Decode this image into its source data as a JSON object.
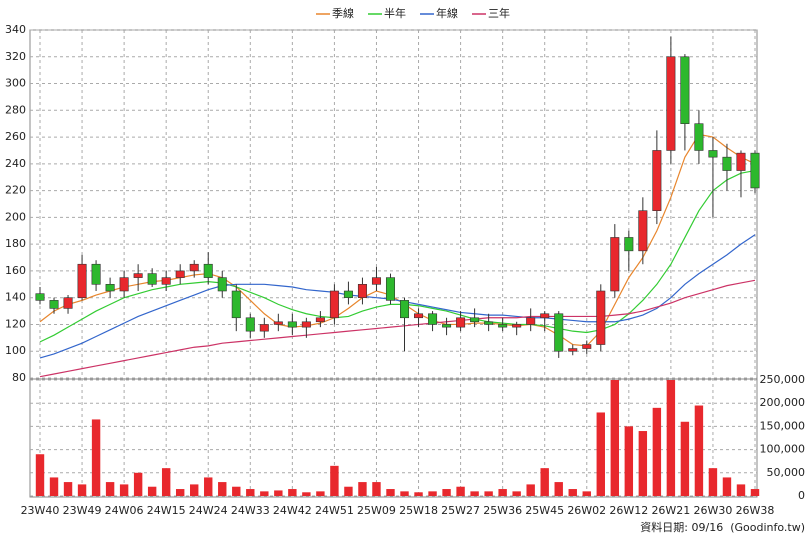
{
  "chart_data": {
    "type": "candlestick",
    "categories": [
      "23W40",
      null,
      null,
      "23W49",
      null,
      null,
      "24W06",
      null,
      null,
      "24W15",
      null,
      null,
      "24W24",
      null,
      null,
      "24W33",
      null,
      null,
      "24W42",
      null,
      null,
      "24W51",
      null,
      null,
      "25W09",
      null,
      null,
      "25W18",
      null,
      null,
      "25W27",
      null,
      null,
      "25W36",
      null,
      null,
      "25W45",
      null,
      null,
      "26W02",
      null,
      null,
      "26W12",
      null,
      null,
      "26W21",
      null,
      null,
      "26W30",
      null,
      null,
      "26W38"
    ],
    "open": [
      143,
      138,
      132,
      140,
      165,
      150,
      145,
      155,
      158,
      150,
      155,
      160,
      165,
      155,
      145,
      125,
      115,
      120,
      122,
      118,
      122,
      125,
      145,
      140,
      150,
      155,
      138,
      125,
      128,
      120,
      118,
      125,
      122,
      120,
      118,
      120,
      125,
      128,
      100,
      102,
      105,
      145,
      185,
      175,
      205,
      250,
      320,
      270,
      250,
      245,
      235,
      248
    ],
    "high": [
      148,
      140,
      142,
      172,
      168,
      155,
      160,
      165,
      162,
      160,
      165,
      168,
      174,
      160,
      150,
      128,
      125,
      128,
      128,
      125,
      130,
      150,
      152,
      155,
      163,
      158,
      140,
      132,
      130,
      125,
      130,
      132,
      128,
      125,
      122,
      132,
      130,
      130,
      105,
      108,
      150,
      195,
      190,
      215,
      265,
      335,
      322,
      280,
      260,
      255,
      250,
      250
    ],
    "low": [
      135,
      128,
      128,
      138,
      145,
      140,
      140,
      145,
      148,
      145,
      150,
      155,
      150,
      140,
      115,
      110,
      110,
      115,
      112,
      110,
      118,
      120,
      135,
      135,
      145,
      135,
      100,
      118,
      115,
      112,
      115,
      118,
      115,
      115,
      112,
      115,
      115,
      95,
      97,
      98,
      100,
      140,
      160,
      165,
      195,
      240,
      250,
      240,
      200,
      220,
      215,
      218
    ],
    "close": [
      138,
      132,
      140,
      165,
      150,
      145,
      155,
      158,
      150,
      155,
      160,
      165,
      155,
      145,
      125,
      115,
      120,
      122,
      118,
      122,
      125,
      145,
      140,
      150,
      155,
      138,
      125,
      128,
      120,
      118,
      125,
      122,
      120,
      118,
      120,
      125,
      128,
      100,
      102,
      105,
      145,
      185,
      175,
      205,
      250,
      320,
      270,
      250,
      245,
      235,
      248,
      222
    ],
    "up_color": "#e8282d",
    "down_color": "#2db82d",
    "ylim": [
      80,
      340
    ],
    "yticks": [
      80,
      100,
      120,
      140,
      160,
      180,
      200,
      220,
      240,
      260,
      280,
      300,
      320,
      340
    ],
    "lines": [
      {
        "name": "季線",
        "color": "#e8862d",
        "values": [
          122,
          130,
          135,
          138,
          142,
          145,
          148,
          150,
          152,
          153,
          155,
          157,
          158,
          155,
          148,
          138,
          128,
          120,
          118,
          119,
          121,
          125,
          132,
          140,
          145,
          142,
          135,
          128,
          123,
          120,
          120,
          121,
          121,
          120,
          119,
          120,
          118,
          112,
          105,
          104,
          115,
          135,
          155,
          170,
          190,
          215,
          245,
          262,
          260,
          252,
          245,
          240
        ]
      },
      {
        "name": "半年",
        "color": "#33cc33",
        "values": [
          107,
          112,
          118,
          124,
          130,
          135,
          140,
          143,
          146,
          148,
          150,
          151,
          152,
          151,
          148,
          144,
          140,
          135,
          131,
          128,
          126,
          125,
          126,
          130,
          133,
          135,
          135,
          134,
          132,
          130,
          127,
          124,
          122,
          121,
          120,
          120,
          119,
          117,
          115,
          114,
          116,
          120,
          128,
          138,
          150,
          165,
          185,
          205,
          220,
          228,
          233,
          235
        ]
      },
      {
        "name": "年線",
        "color": "#3366cc",
        "values": [
          95,
          98,
          102,
          106,
          111,
          116,
          121,
          126,
          130,
          134,
          138,
          142,
          146,
          149,
          150,
          150,
          150,
          149,
          148,
          146,
          145,
          144,
          142,
          141,
          140,
          139,
          137,
          135,
          133,
          131,
          129,
          128,
          127,
          127,
          126,
          125,
          125,
          124,
          123,
          122,
          122,
          122,
          124,
          127,
          132,
          140,
          150,
          158,
          165,
          172,
          180,
          187
        ]
      },
      {
        "name": "三年",
        "color": "#cc3366",
        "values": [
          81,
          83,
          85,
          87,
          89,
          91,
          93,
          95,
          97,
          99,
          101,
          103,
          104,
          106,
          107,
          108,
          109,
          110,
          111,
          112,
          113,
          114,
          115,
          116,
          117,
          118,
          119,
          120,
          121,
          122,
          123,
          124,
          125,
          125,
          125,
          126,
          126,
          126,
          126,
          126,
          126,
          127,
          128,
          130,
          133,
          136,
          140,
          143,
          146,
          149,
          151,
          153
        ]
      }
    ],
    "volume": {
      "color": "#e8282d",
      "ylim": [
        0,
        250000
      ],
      "yticks": [
        {
          "value": 0,
          "label": "0"
        },
        {
          "value": 50000,
          "label": "50,000"
        },
        {
          "value": 100000,
          "label": "100,000"
        },
        {
          "value": 150000,
          "label": "150,000"
        },
        {
          "value": 200000,
          "label": "200,000"
        },
        {
          "value": 250000,
          "label": "250,000"
        }
      ],
      "values": [
        90000,
        40000,
        30000,
        25000,
        165000,
        30000,
        25000,
        50000,
        20000,
        60000,
        15000,
        25000,
        40000,
        30000,
        20000,
        15000,
        10000,
        12000,
        15000,
        8000,
        10000,
        65000,
        20000,
        30000,
        30000,
        15000,
        10000,
        8000,
        10000,
        15000,
        20000,
        10000,
        10000,
        15000,
        10000,
        25000,
        60000,
        30000,
        15000,
        10000,
        180000,
        250000,
        150000,
        140000,
        190000,
        250000,
        160000,
        195000,
        60000,
        40000,
        25000,
        15000
      ]
    },
    "grid": true,
    "footnote": "資料日期: 09/16  (Goodinfo.tw)"
  }
}
